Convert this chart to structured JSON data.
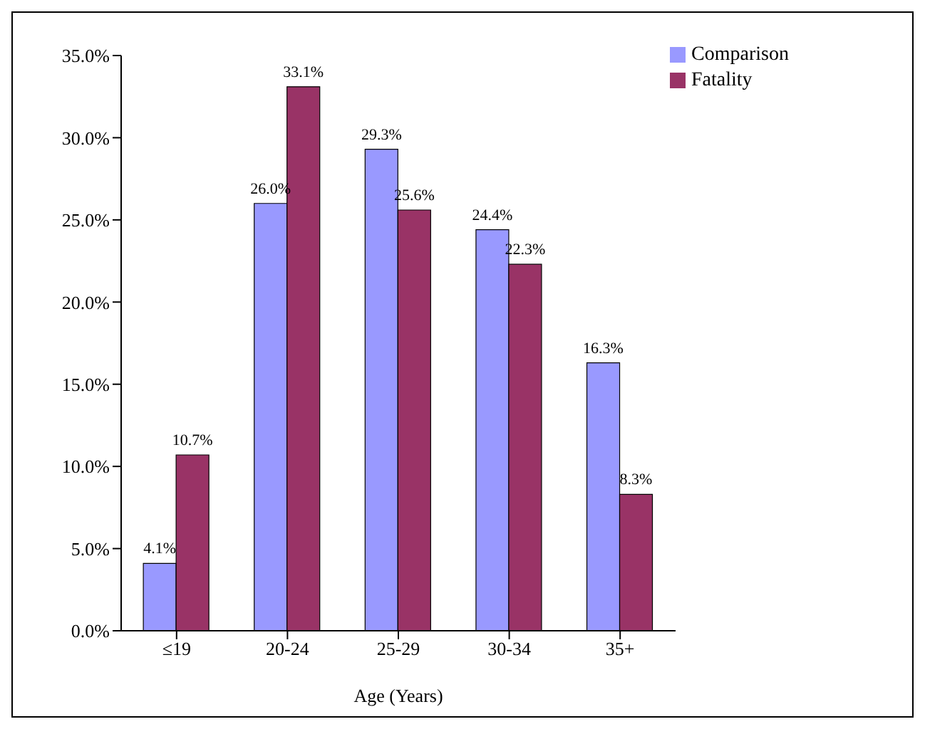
{
  "chart_data": {
    "type": "bar",
    "xlabel": "Age (Years)",
    "categories": [
      "≤19",
      "20-24",
      "25-29",
      "30-34",
      "35+"
    ],
    "series": [
      {
        "name": "Comparison",
        "color": "#9999ff",
        "values": [
          4.1,
          26.0,
          29.3,
          24.4,
          16.3
        ],
        "value_labels": [
          "4.1%",
          "26.0%",
          "29.3%",
          "24.4%",
          "16.3%"
        ]
      },
      {
        "name": "Fatality",
        "color": "#993366",
        "values": [
          10.7,
          33.1,
          25.6,
          22.3,
          8.3
        ],
        "value_labels": [
          "10.7%",
          "33.1%",
          "25.6%",
          "22.3%",
          "8.3%"
        ]
      }
    ],
    "ylim": [
      0,
      35
    ],
    "yticks": [
      {
        "value": 0,
        "label": "0.0%"
      },
      {
        "value": 5,
        "label": "5.0%"
      },
      {
        "value": 10,
        "label": "10.0%"
      },
      {
        "value": 15,
        "label": "15.0%"
      },
      {
        "value": 20,
        "label": "20.0%"
      },
      {
        "value": 25,
        "label": "25.0%"
      },
      {
        "value": 30,
        "label": "30.0%"
      },
      {
        "value": 35,
        "label": "35.0%"
      }
    ],
    "grid": false,
    "legend": "top right"
  }
}
